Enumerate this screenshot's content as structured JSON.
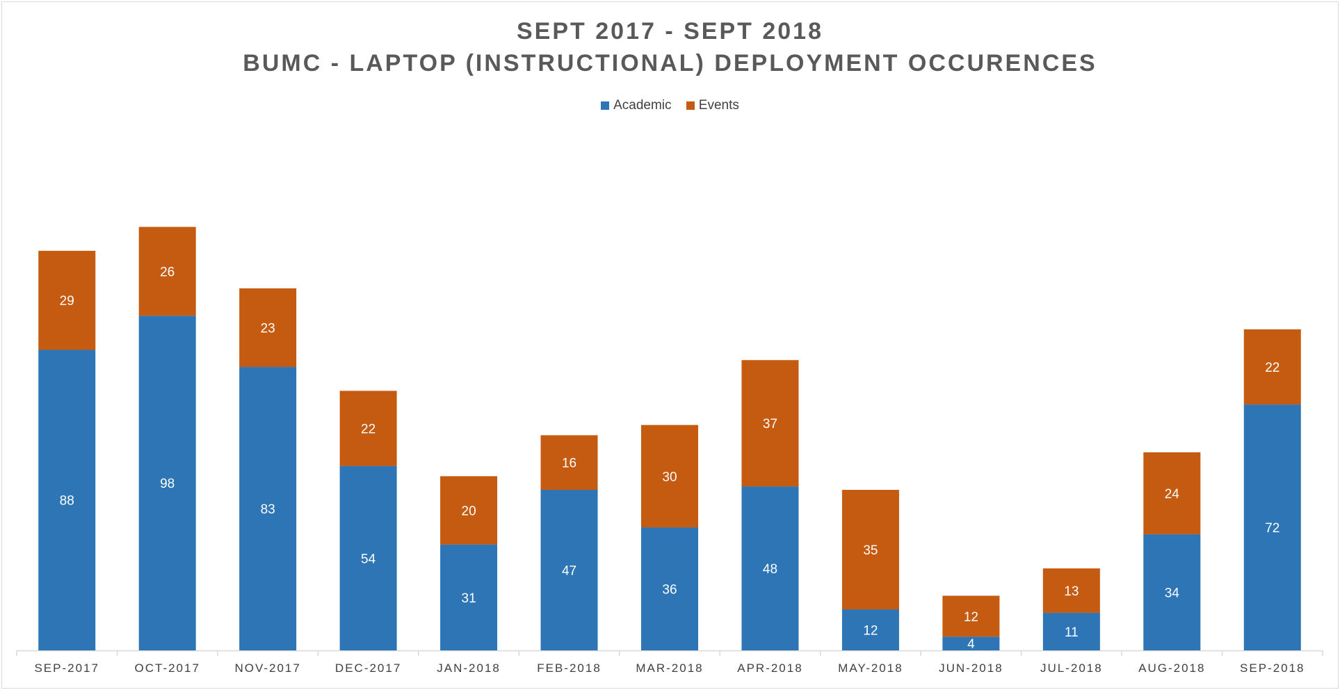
{
  "chart_data": {
    "type": "bar",
    "stacked": true,
    "title": "SEPT 2017 - SEPT 2018",
    "subtitle": "BUMC - LAPTOP (INSTRUCTIONAL) DEPLOYMENT OCCURENCES",
    "xlabel": "",
    "ylabel": "",
    "ylim": [
      0,
      140
    ],
    "grid": false,
    "legend_position": "top-center",
    "categories": [
      "SEP-2017",
      "OCT-2017",
      "NOV-2017",
      "DEC-2017",
      "JAN-2018",
      "FEB-2018",
      "MAR-2018",
      "APR-2018",
      "MAY-2018",
      "JUN-2018",
      "JUL-2018",
      "AUG-2018",
      "SEP-2018"
    ],
    "series": [
      {
        "name": "Academic",
        "color": "#2e75b6",
        "values": [
          88,
          98,
          83,
          54,
          31,
          47,
          36,
          48,
          12,
          4,
          11,
          34,
          72
        ]
      },
      {
        "name": "Events",
        "color": "#c55a11",
        "values": [
          29,
          26,
          23,
          22,
          20,
          16,
          30,
          37,
          35,
          12,
          13,
          24,
          22
        ]
      }
    ]
  }
}
